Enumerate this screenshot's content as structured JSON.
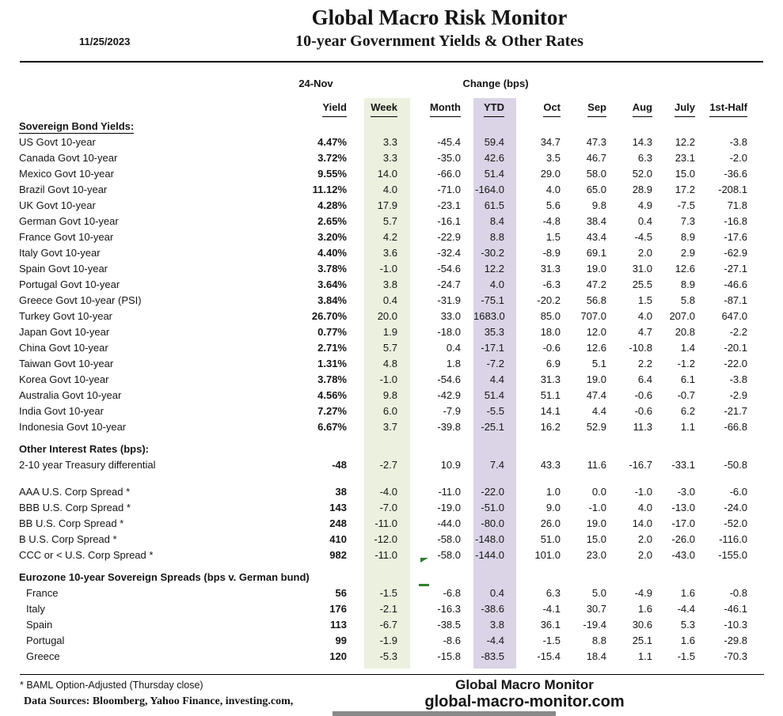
{
  "header": {
    "date": "11/25/2023",
    "title": "Global Macro Risk Monitor",
    "subtitle": "10-year Government Yields & Other Rates"
  },
  "table": {
    "group_left": "24-Nov",
    "group_right": "Change (bps)",
    "columns": [
      "Yield",
      "Week",
      "Month",
      "YTD",
      "Oct",
      "Sep",
      "Aug",
      "July",
      "1st-Half"
    ],
    "sections": [
      {
        "title": "Sovereign Bond Yields:",
        "title_underline": true,
        "rows": [
          {
            "label": "US Govt 10-year",
            "values": [
              "4.47%",
              "3.3",
              "-45.4",
              "59.4",
              "34.7",
              "47.3",
              "14.3",
              "12.2",
              "-3.8"
            ]
          },
          {
            "label": "Canada Govt 10-year",
            "values": [
              "3.72%",
              "3.3",
              "-35.0",
              "42.6",
              "3.5",
              "46.7",
              "6.3",
              "23.1",
              "-2.0"
            ]
          },
          {
            "label": "Mexico Govt 10-year",
            "values": [
              "9.55%",
              "14.0",
              "-66.0",
              "51.4",
              "29.0",
              "58.0",
              "52.0",
              "15.0",
              "-36.6"
            ]
          },
          {
            "label": "Brazil Govt 10-year",
            "values": [
              "11.12%",
              "4.0",
              "-71.0",
              "-164.0",
              "4.0",
              "65.0",
              "28.9",
              "17.2",
              "-208.1"
            ]
          },
          {
            "label": "UK Govt 10-year",
            "values": [
              "4.28%",
              "17.9",
              "-23.1",
              "61.5",
              "5.6",
              "9.8",
              "4.9",
              "-7.5",
              "71.8"
            ]
          },
          {
            "label": "German Govt 10-year",
            "values": [
              "2.65%",
              "5.7",
              "-16.1",
              "8.4",
              "-4.8",
              "38.4",
              "0.4",
              "7.3",
              "-16.8"
            ]
          },
          {
            "label": "France Govt 10-year",
            "values": [
              "3.20%",
              "4.2",
              "-22.9",
              "8.8",
              "1.5",
              "43.4",
              "-4.5",
              "8.9",
              "-17.6"
            ]
          },
          {
            "label": "Italy Govt 10-year",
            "values": [
              "4.40%",
              "3.6",
              "-32.4",
              "-30.2",
              "-8.9",
              "69.1",
              "2.0",
              "2.9",
              "-62.9"
            ]
          },
          {
            "label": "Spain Govt 10-year",
            "values": [
              "3.78%",
              "-1.0",
              "-54.6",
              "12.2",
              "31.3",
              "19.0",
              "31.0",
              "12.6",
              "-27.1"
            ]
          },
          {
            "label": "Portugal Govt 10-year",
            "values": [
              "3.64%",
              "3.8",
              "-24.7",
              "4.0",
              "-6.3",
              "47.2",
              "25.5",
              "8.9",
              "-46.6"
            ]
          },
          {
            "label": "Greece Govt 10-year (PSI)",
            "values": [
              "3.84%",
              "0.4",
              "-31.9",
              "-75.1",
              "-20.2",
              "56.8",
              "1.5",
              "5.8",
              "-87.1"
            ]
          },
          {
            "label": "Turkey Govt 10-year",
            "values": [
              "26.70%",
              "20.0",
              "33.0",
              "1683.0",
              "85.0",
              "707.0",
              "4.0",
              "207.0",
              "647.0"
            ]
          },
          {
            "label": "Japan Govt 10-year",
            "values": [
              "0.77%",
              "1.9",
              "-18.0",
              "35.3",
              "18.0",
              "12.0",
              "4.7",
              "20.8",
              "-2.2"
            ]
          },
          {
            "label": "China Govt 10-year",
            "values": [
              "2.71%",
              "5.7",
              "0.4",
              "-17.1",
              "-0.6",
              "12.6",
              "-10.8",
              "1.4",
              "-20.1"
            ]
          },
          {
            "label": "Taiwan Govt 10-year",
            "values": [
              "1.31%",
              "4.8",
              "1.8",
              "-7.2",
              "6.9",
              "5.1",
              "2.2",
              "-1.2",
              "-22.0"
            ]
          },
          {
            "label": "Korea Govt 10-year",
            "values": [
              "3.78%",
              "-1.0",
              "-54.6",
              "4.4",
              "31.3",
              "19.0",
              "6.4",
              "6.1",
              "-3.8"
            ]
          },
          {
            "label": "Australia Govt 10-year",
            "values": [
              "4.56%",
              "9.8",
              "-42.9",
              "51.4",
              "51.1",
              "47.4",
              "-0.6",
              "-0.7",
              "-2.9"
            ]
          },
          {
            "label": "India Govt 10-year",
            "values": [
              "7.27%",
              "6.0",
              "-7.9",
              "-5.5",
              "14.1",
              "4.4",
              "-0.6",
              "6.2",
              "-21.7"
            ]
          },
          {
            "label": "Indonesia Govt 10-year",
            "values": [
              "6.67%",
              "3.7",
              "-39.8",
              "-25.1",
              "16.2",
              "52.9",
              "11.3",
              "1.1",
              "-66.8"
            ]
          }
        ]
      },
      {
        "title": "Other Interest Rates  (bps):",
        "title_underline": false,
        "rows": [
          {
            "label": "2-10 year Treasury differential",
            "values": [
              "-48",
              "-2.7",
              "10.9",
              "7.4",
              "43.3",
              "11.6",
              "-16.7",
              "-33.1",
              "-50.8"
            ]
          },
          {
            "spacer": true
          },
          {
            "label": "AAA U.S. Corp Spread *",
            "values": [
              "38",
              "-4.0",
              "-11.0",
              "-22.0",
              "1.0",
              "0.0",
              "-1.0",
              "-3.0",
              "-6.0"
            ]
          },
          {
            "label": "BBB U.S. Corp Spread *",
            "values": [
              "143",
              "-7.0",
              "-19.0",
              "-51.0",
              "9.0",
              "-1.0",
              "4.0",
              "-13.0",
              "-24.0"
            ]
          },
          {
            "label": "BB U.S. Corp Spread *",
            "values": [
              "248",
              "-11.0",
              "-44.0",
              "-80.0",
              "26.0",
              "19.0",
              "14.0",
              "-17.0",
              "-52.0"
            ]
          },
          {
            "label": "B U.S. Corp Spread *",
            "values": [
              "410",
              "-12.0",
              "-58.0",
              "-148.0",
              "51.0",
              "15.0",
              "2.0",
              "-26.0",
              "-116.0"
            ]
          },
          {
            "label": "CCC or < U.S. Corp Spread *",
            "values": [
              "982",
              "-11.0",
              "-58.0",
              "-144.0",
              "101.0",
              "23.0",
              "2.0",
              "-43.0",
              "-155.0"
            ]
          }
        ]
      },
      {
        "title": "Eurozone 10-year Sovereign Spreads (bps v. German bund)",
        "title_underline": false,
        "rows": [
          {
            "label": "France",
            "indent": true,
            "values": [
              "56",
              "-1.5",
              "-6.8",
              "0.4",
              "6.3",
              "5.0",
              "-4.9",
              "1.6",
              "-0.8"
            ]
          },
          {
            "label": "Italy",
            "indent": true,
            "values": [
              "176",
              "-2.1",
              "-16.3",
              "-38.6",
              "-4.1",
              "30.7",
              "1.6",
              "-4.4",
              "-46.1"
            ]
          },
          {
            "label": "Spain",
            "indent": true,
            "values": [
              "113",
              "-6.7",
              "-38.5",
              "3.8",
              "36.1",
              "-19.4",
              "30.6",
              "5.3",
              "-10.3"
            ]
          },
          {
            "label": "Portugal",
            "indent": true,
            "values": [
              "99",
              "-1.9",
              "-8.6",
              "-4.4",
              "-1.5",
              "8.8",
              "25.1",
              "1.6",
              "-29.8"
            ]
          },
          {
            "label": "Greece",
            "indent": true,
            "values": [
              "120",
              "-5.3",
              "-15.8",
              "-83.5",
              "-15.4",
              "18.4",
              "1.1",
              "-1.5",
              "-70.3"
            ]
          }
        ]
      }
    ]
  },
  "footer": {
    "footnote": "* BAML Option-Adjusted (Thursday close)",
    "sources": "Data Sources:  Bloomberg,  Yahoo Finance, investing.com,",
    "brand": "Global Macro Monitor",
    "site": "global-macro-monitor.com"
  },
  "colors": {
    "week_band": "#ebf1de",
    "ytd_band": "#dad4e6",
    "green_mark": "#2f7e2f",
    "text": "#151515"
  }
}
